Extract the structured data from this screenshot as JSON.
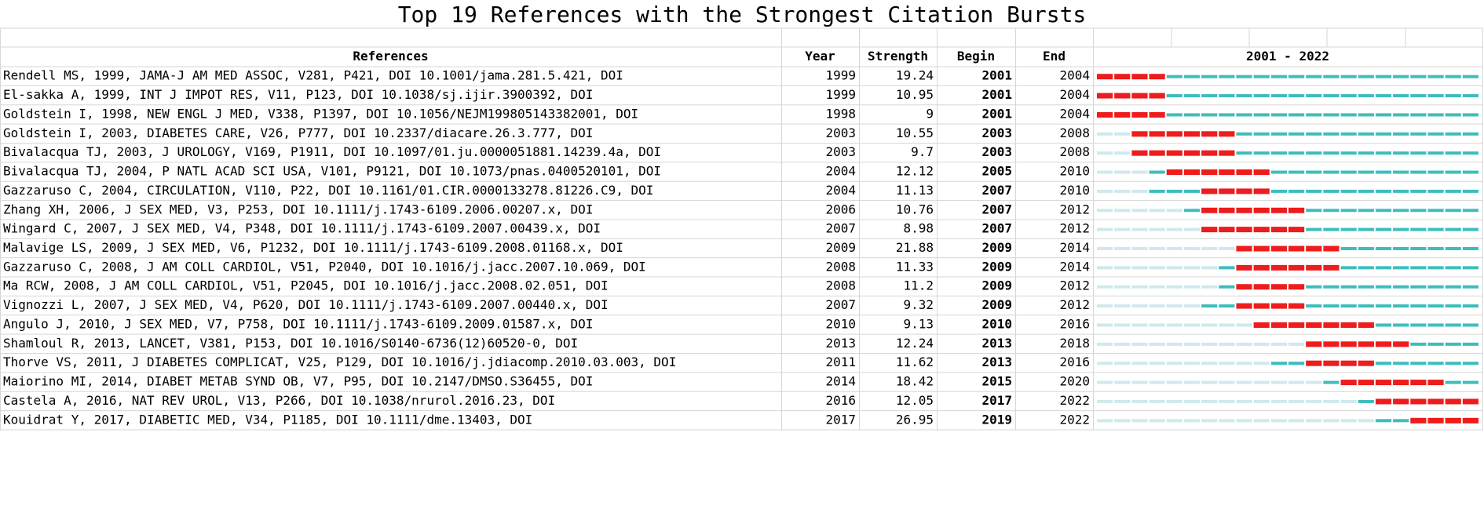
{
  "title": "Top 19 References with the Strongest Citation Bursts",
  "header": {
    "reference": "References",
    "year": "Year",
    "strength": "Strength",
    "begin": "Begin",
    "end": "End",
    "timeline": "2001 - 2022"
  },
  "colors": {
    "absent": "#cfe9ec",
    "present": "#3dbdbd",
    "burst": "#ee1c1c"
  },
  "rows": [
    {
      "reference": "Rendell MS, 1999, JAMA-J AM MED ASSOC, V281, P421, DOI 10.1001/jama.281.5.421, DOI",
      "year": 1999,
      "strength": 19.24,
      "begin": 2001,
      "end": 2004
    },
    {
      "reference": "El-sakka A, 1999, INT J IMPOT RES, V11, P123, DOI 10.1038/sj.ijir.3900392, DOI",
      "year": 1999,
      "strength": 10.95,
      "begin": 2001,
      "end": 2004
    },
    {
      "reference": "Goldstein I, 1998, NEW ENGL J MED, V338, P1397, DOI 10.1056/NEJM199805143382001, DOI",
      "year": 1998,
      "strength": 9,
      "begin": 2001,
      "end": 2004
    },
    {
      "reference": "Goldstein I, 2003, DIABETES CARE, V26, P777, DOI 10.2337/diacare.26.3.777, DOI",
      "year": 2003,
      "strength": 10.55,
      "begin": 2003,
      "end": 2008
    },
    {
      "reference": "Bivalacqua TJ, 2003, J UROLOGY, V169, P1911, DOI 10.1097/01.ju.0000051881.14239.4a, DOI",
      "year": 2003,
      "strength": 9.7,
      "begin": 2003,
      "end": 2008
    },
    {
      "reference": "Bivalacqua TJ, 2004, P NATL ACAD SCI USA, V101, P9121, DOI 10.1073/pnas.0400520101, DOI",
      "year": 2004,
      "strength": 12.12,
      "begin": 2005,
      "end": 2010
    },
    {
      "reference": "Gazzaruso C, 2004, CIRCULATION, V110, P22, DOI 10.1161/01.CIR.0000133278.81226.C9, DOI",
      "year": 2004,
      "strength": 11.13,
      "begin": 2007,
      "end": 2010
    },
    {
      "reference": "Zhang XH, 2006, J SEX MED, V3, P253, DOI 10.1111/j.1743-6109.2006.00207.x, DOI",
      "year": 2006,
      "strength": 10.76,
      "begin": 2007,
      "end": 2012
    },
    {
      "reference": "Wingard C, 2007, J SEX MED, V4, P348, DOI 10.1111/j.1743-6109.2007.00439.x, DOI",
      "year": 2007,
      "strength": 8.98,
      "begin": 2007,
      "end": 2012
    },
    {
      "reference": "Malavige LS, 2009, J SEX MED, V6, P1232, DOI 10.1111/j.1743-6109.2008.01168.x, DOI",
      "year": 2009,
      "strength": 21.88,
      "begin": 2009,
      "end": 2014
    },
    {
      "reference": "Gazzaruso C, 2008, J AM COLL CARDIOL, V51, P2040, DOI 10.1016/j.jacc.2007.10.069, DOI",
      "year": 2008,
      "strength": 11.33,
      "begin": 2009,
      "end": 2014
    },
    {
      "reference": "Ma RCW, 2008, J AM COLL CARDIOL, V51, P2045, DOI 10.1016/j.jacc.2008.02.051, DOI",
      "year": 2008,
      "strength": 11.2,
      "begin": 2009,
      "end": 2012
    },
    {
      "reference": "Vignozzi L, 2007, J SEX MED, V4, P620, DOI 10.1111/j.1743-6109.2007.00440.x, DOI",
      "year": 2007,
      "strength": 9.32,
      "begin": 2009,
      "end": 2012
    },
    {
      "reference": "Angulo J, 2010, J SEX MED, V7, P758, DOI 10.1111/j.1743-6109.2009.01587.x, DOI",
      "year": 2010,
      "strength": 9.13,
      "begin": 2010,
      "end": 2016
    },
    {
      "reference": "Shamloul R, 2013, LANCET, V381, P153, DOI 10.1016/S0140-6736(12)60520-0, DOI",
      "year": 2013,
      "strength": 12.24,
      "begin": 2013,
      "end": 2018
    },
    {
      "reference": "Thorve VS, 2011, J DIABETES COMPLICAT, V25, P129, DOI 10.1016/j.jdiacomp.2010.03.003, DOI",
      "year": 2011,
      "strength": 11.62,
      "begin": 2013,
      "end": 2016
    },
    {
      "reference": "Maiorino MI, 2014, DIABET METAB SYND OB, V7, P95, DOI 10.2147/DMSO.S36455, DOI",
      "year": 2014,
      "strength": 18.42,
      "begin": 2015,
      "end": 2020
    },
    {
      "reference": "Castela A, 2016, NAT REV UROL, V13, P266, DOI 10.1038/nrurol.2016.23, DOI",
      "year": 2016,
      "strength": 12.05,
      "begin": 2017,
      "end": 2022
    },
    {
      "reference": "Kouidrat Y, 2017, DIABETIC MED, V34, P1185, DOI 10.1111/dme.13403, DOI",
      "year": 2017,
      "strength": 26.95,
      "begin": 2019,
      "end": 2022
    }
  ]
}
